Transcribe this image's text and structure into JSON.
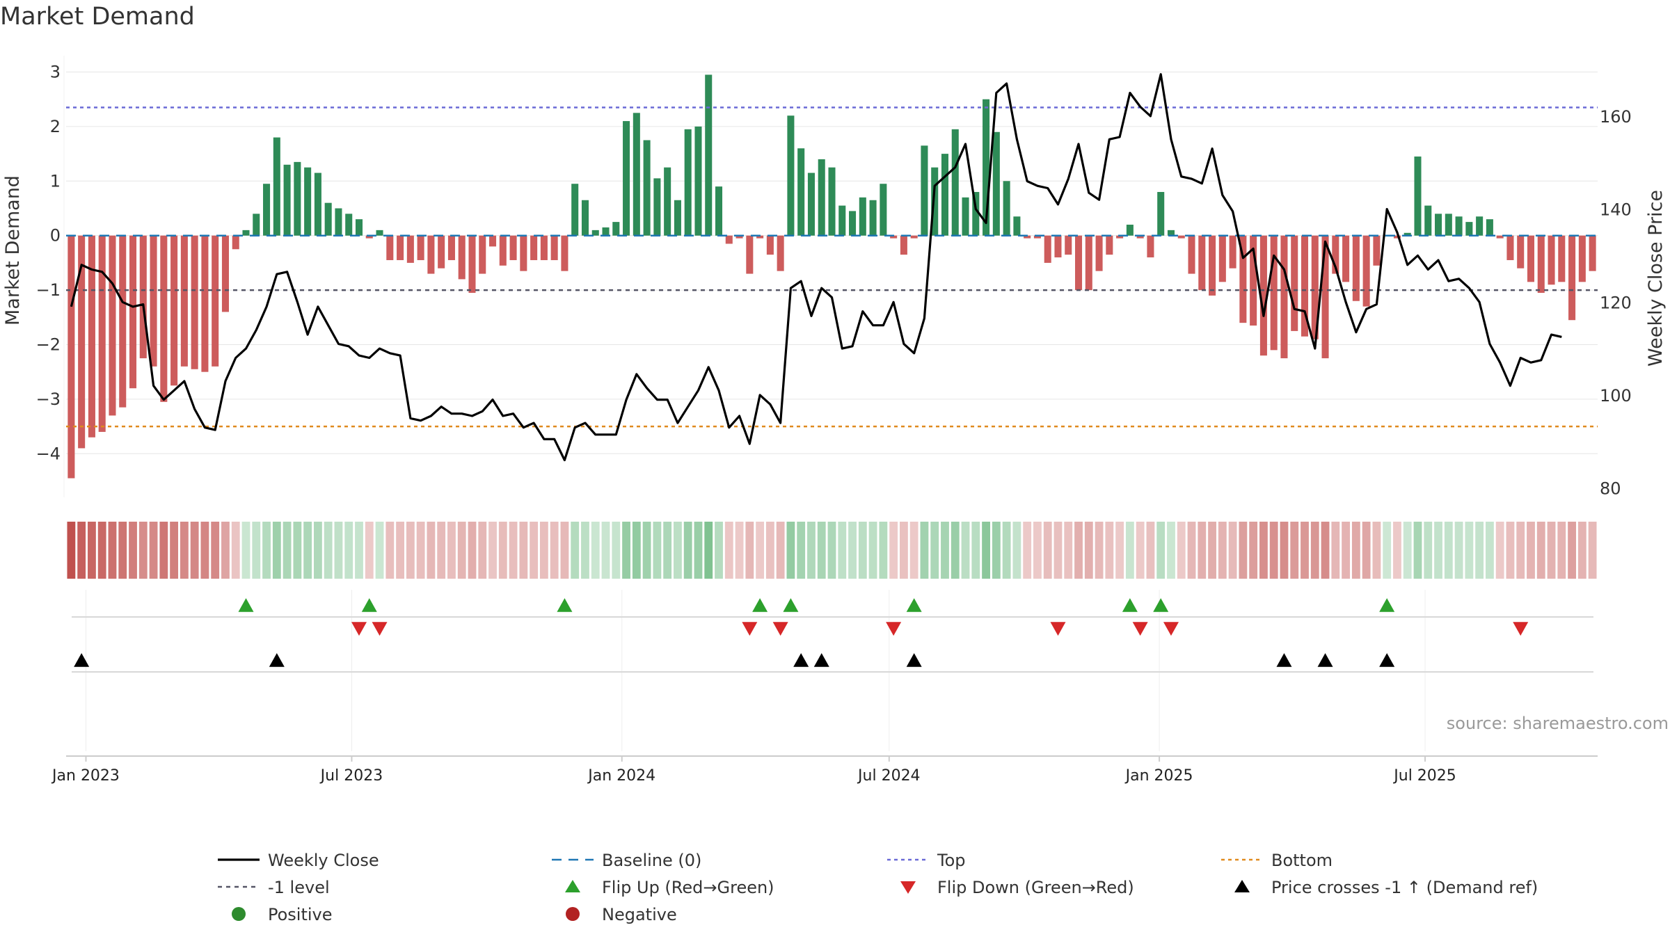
{
  "page": {
    "title": "Market Demand",
    "source": "source: sharemaestro.com"
  },
  "colors": {
    "positive": "#2e8b57",
    "negative": "#cd5c5c",
    "price": "#000000",
    "top": "#6a6ad6",
    "bottom": "#e08a1e",
    "minus1": "#555566",
    "baseline": "#1f77b4",
    "flip_up": "#2ca02c",
    "flip_down": "#d62728",
    "cross": "#000000"
  },
  "chart_data": {
    "type": "bar+line",
    "title": "Market Demand",
    "ylabel_left": "Market Demand",
    "ylabel_right": "Weekly Close Price",
    "ylim_left": [
      -4.8,
      3.3
    ],
    "ylim_right": [
      78,
      173
    ],
    "yticks_left": [
      3,
      2,
      1,
      0,
      -1,
      -2,
      -3,
      -4
    ],
    "yticks_left_labels": [
      "3",
      "2",
      "1",
      "0",
      "−1",
      "−2",
      "−3",
      "−4"
    ],
    "yticks_right": [
      160,
      140,
      120,
      100,
      80
    ],
    "x_start": "2022-12-22",
    "x_step_days": 7,
    "x_ticks": [
      {
        "label": "Jan 2023",
        "date": "2023-01-01"
      },
      {
        "label": "Jul 2023",
        "date": "2023-07-01"
      },
      {
        "label": "Jan 2024",
        "date": "2024-01-01"
      },
      {
        "label": "Jul 2024",
        "date": "2024-07-01"
      },
      {
        "label": "Jan 2025",
        "date": "2025-01-01"
      },
      {
        "label": "Jul 2025",
        "date": "2025-07-01"
      }
    ],
    "levels": {
      "top": 2.35,
      "bottom": -3.5,
      "minus1": -1.0,
      "baseline": 0
    },
    "demand": [
      -4.45,
      -3.9,
      -3.7,
      -3.6,
      -3.3,
      -3.15,
      -2.8,
      -2.25,
      -2.4,
      -3.05,
      -2.75,
      -2.4,
      -2.45,
      -2.5,
      -2.4,
      -1.4,
      -0.25,
      0.1,
      0.4,
      0.95,
      1.8,
      1.3,
      1.35,
      1.25,
      1.15,
      0.6,
      0.5,
      0.4,
      0.3,
      -0.05,
      0.1,
      -0.45,
      -0.45,
      -0.5,
      -0.45,
      -0.7,
      -0.6,
      -0.45,
      -0.8,
      -1.05,
      -0.7,
      -0.2,
      -0.55,
      -0.45,
      -0.65,
      -0.45,
      -0.45,
      -0.45,
      -0.65,
      0.95,
      0.65,
      0.1,
      0.15,
      0.25,
      2.1,
      2.25,
      1.75,
      1.05,
      1.25,
      0.65,
      1.95,
      2.0,
      2.95,
      0.9,
      -0.15,
      -0.05,
      -0.7,
      -0.05,
      -0.35,
      -0.65,
      2.2,
      1.6,
      1.15,
      1.4,
      1.25,
      0.55,
      0.45,
      0.7,
      0.65,
      0.95,
      -0.05,
      -0.35,
      -0.05,
      1.65,
      1.25,
      1.5,
      1.95,
      0.7,
      0.8,
      2.5,
      1.9,
      1.0,
      0.35,
      -0.05,
      -0.05,
      -0.5,
      -0.4,
      -0.35,
      -1.0,
      -1.0,
      -0.65,
      -0.35,
      -0.05,
      0.2,
      -0.05,
      -0.4,
      0.8,
      0.1,
      -0.05,
      -0.7,
      -1.0,
      -1.1,
      -0.85,
      -0.6,
      -1.6,
      -1.65,
      -2.2,
      -2.1,
      -2.25,
      -1.75,
      -1.85,
      -1.9,
      -2.25,
      -0.7,
      -0.85,
      -1.2,
      -1.3,
      -0.55,
      0.0,
      -0.05,
      0.05,
      1.45,
      0.55,
      0.4,
      0.4,
      0.35,
      0.25,
      0.35,
      0.3,
      -0.05,
      -0.45,
      -0.6,
      -0.85,
      -1.05,
      -0.9,
      -0.85,
      -1.55,
      -0.85,
      -0.65
    ],
    "price": [
      119,
      128,
      127,
      126.5,
      124,
      120,
      119,
      119.5,
      102,
      99,
      101,
      103,
      97,
      93,
      92.5,
      103,
      108,
      110,
      114,
      119,
      126,
      126.5,
      120,
      113,
      119,
      115,
      111,
      110.5,
      108.5,
      108,
      110,
      109,
      108.5,
      95,
      94.5,
      95.5,
      97.5,
      96,
      96,
      95.5,
      96.5,
      99,
      95.5,
      96,
      93,
      94,
      90.5,
      90.5,
      86,
      93,
      94,
      91.5,
      91.5,
      91.5,
      99,
      104.5,
      101.5,
      99,
      99,
      94,
      97.5,
      101,
      106,
      101,
      93,
      95.5,
      89.5,
      100,
      98,
      94,
      123,
      124.5,
      117,
      123,
      121,
      110,
      110.5,
      118,
      115,
      115,
      120,
      111,
      109,
      116.5,
      145,
      147,
      149,
      154,
      140,
      137,
      165,
      167,
      155,
      146,
      145,
      144.5,
      141,
      146.5,
      154,
      143.5,
      142,
      155,
      155.5,
      165,
      162,
      160,
      169,
      155,
      147,
      146.5,
      145.5,
      153,
      143,
      139.5,
      129.5,
      131.5,
      117,
      130,
      127,
      118.5,
      118,
      110,
      133,
      127.5,
      120,
      113.5,
      118.5,
      119.5,
      140,
      135,
      128,
      130,
      127,
      129,
      124.5,
      125,
      123,
      120,
      111,
      107,
      102,
      108,
      107,
      107.5,
      113,
      112.5
    ]
  },
  "flip_up": [
    "2023-04-20",
    "2023-07-13",
    "2023-11-23",
    "2024-04-04",
    "2024-04-25",
    "2024-07-18",
    "2024-12-12",
    "2025-01-02",
    "2025-06-05"
  ],
  "flip_down": [
    "2023-07-06",
    "2023-07-20",
    "2024-03-28",
    "2024-04-18",
    "2024-07-04",
    "2024-10-24",
    "2024-12-19",
    "2025-01-09",
    "2025-09-04"
  ],
  "cross_up": [
    "2022-12-29",
    "2023-05-11",
    "2024-05-02",
    "2024-05-16",
    "2024-07-18",
    "2025-03-27",
    "2025-04-24",
    "2025-06-05"
  ],
  "legend": [
    {
      "key": "line_black",
      "label": "Weekly Close"
    },
    {
      "key": "dash_baseline",
      "label": "Baseline (0)"
    },
    {
      "key": "dot_top",
      "label": "Top"
    },
    {
      "key": "dot_bottom",
      "label": "Bottom"
    },
    {
      "key": "dot_minus1",
      "label": "-1 level"
    },
    {
      "key": "tri_up_green",
      "label": "Flip Up (Red→Green)"
    },
    {
      "key": "tri_down_red",
      "label": "Flip Down (Green→Red)"
    },
    {
      "key": "tri_up_black",
      "label": "Price crosses -1 ↑ (Demand ref)"
    },
    {
      "key": "dot_green",
      "label": "Positive"
    },
    {
      "key": "dot_red",
      "label": "Negative"
    }
  ]
}
